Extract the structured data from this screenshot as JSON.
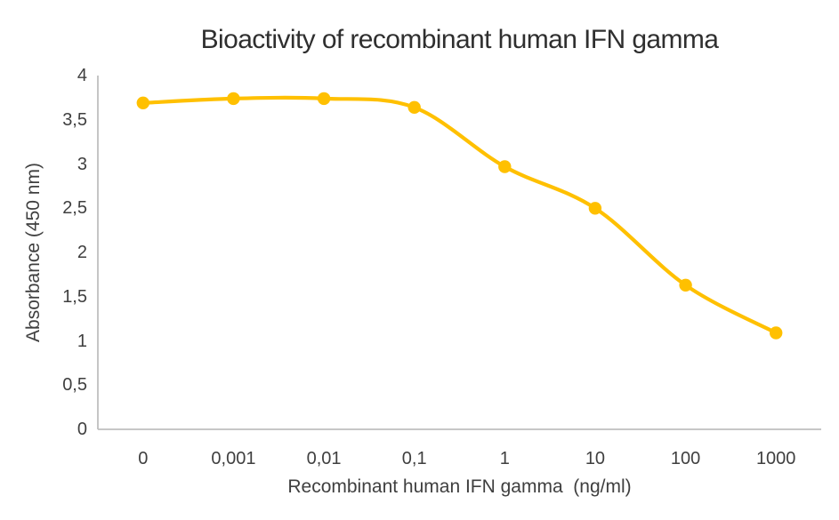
{
  "chart_data": {
    "type": "line",
    "title": "Bioactivity of recombinant human IFN gamma",
    "xlabel": "Recombinant human IFN gamma  (ng/ml)",
    "ylabel": "Absorbance (450 nm)",
    "categories": [
      "0",
      "0,001",
      "0,01",
      "0,1",
      "1",
      "10",
      "100",
      "1000"
    ],
    "values": [
      3.69,
      3.74,
      3.74,
      3.64,
      2.97,
      2.5,
      1.63,
      1.09
    ],
    "ylim": [
      0,
      4
    ],
    "y_tick_values": [
      0,
      0.5,
      1,
      1.5,
      2,
      2.5,
      3,
      3.5,
      4
    ],
    "y_tick_labels": [
      "0",
      "0,5",
      "1",
      "1,5",
      "2",
      "2,5",
      "3",
      "3,5",
      "4"
    ],
    "grid": false,
    "legend": "none",
    "line_smooth": true,
    "line_color": "#FFC000",
    "marker": "circle",
    "axis_color": "#BFBFBF",
    "tick_text_color": "#3F3F3F",
    "title_text_color": "#2F2F2F"
  }
}
